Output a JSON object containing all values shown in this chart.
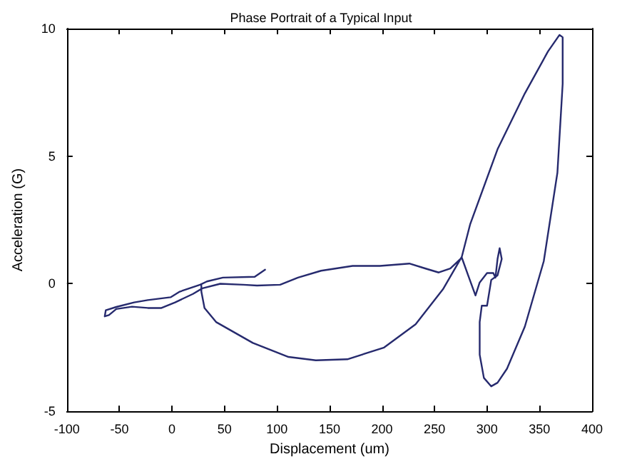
{
  "chart_data": {
    "type": "line",
    "title": "Phase Portrait of a Typical Input",
    "xlabel": "Displacement (um)",
    "ylabel": "Acceleration (G)",
    "series": [
      {
        "color": "#262a6e",
        "x": [
          88.7,
          78.8,
          48.5,
          33.3,
          26.8,
          7.4,
          -1.3,
          -23,
          -36,
          -53,
          -63,
          -64,
          -60,
          -53,
          -38,
          -23,
          -10,
          3,
          20,
          29,
          46,
          68,
          81,
          103,
          120,
          142,
          172,
          198,
          226,
          241,
          254,
          265,
          276,
          282,
          289,
          293,
          300,
          306,
          308,
          310,
          312,
          314,
          310,
          304,
          300,
          295,
          293,
          293,
          297,
          304,
          310,
          319,
          336,
          354,
          367,
          372,
          372,
          369,
          358,
          336,
          310,
          284,
          276,
          258,
          232,
          202,
          167,
          137,
          111,
          77,
          42,
          31,
          28,
          28
        ],
        "values": [
          0.55,
          0.27,
          0.24,
          0.09,
          -0.04,
          -0.31,
          -0.53,
          -0.64,
          -0.73,
          -0.91,
          -1.04,
          -1.28,
          -1.23,
          -0.99,
          -0.9,
          -0.95,
          -0.95,
          -0.73,
          -0.4,
          -0.18,
          0,
          -0.04,
          -0.07,
          -0.04,
          0.24,
          0.51,
          0.7,
          0.7,
          0.79,
          0.6,
          0.44,
          0.6,
          1.02,
          0.33,
          -0.46,
          0.05,
          0.42,
          0.42,
          0.24,
          0.97,
          1.39,
          0.97,
          0.33,
          0.15,
          -0.86,
          -0.86,
          -1.5,
          -2.78,
          -3.69,
          -4.02,
          -3.88,
          -3.33,
          -1.68,
          0.88,
          4.35,
          7.83,
          9.66,
          9.75,
          9.1,
          7.46,
          5.27,
          2.34,
          1.06,
          -0.22,
          -1.59,
          -2.5,
          -2.96,
          -3.0,
          -2.87,
          -2.32,
          -1.5,
          -0.95,
          -0.31,
          -0.07
        ]
      }
    ],
    "xlim": [
      -100,
      400
    ],
    "xticks": [
      -100,
      -50,
      0,
      50,
      100,
      150,
      200,
      250,
      300,
      350,
      400
    ],
    "ylim": [
      -5,
      10
    ],
    "yticks": [
      -5,
      0,
      5,
      10
    ],
    "grid": false,
    "marker": "none",
    "line_style": "solid"
  }
}
